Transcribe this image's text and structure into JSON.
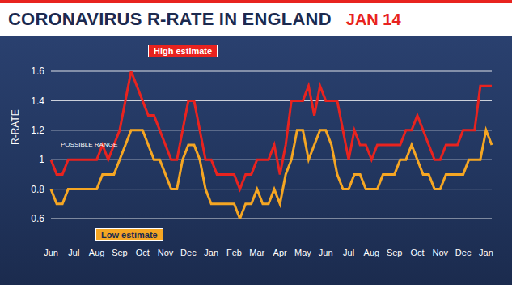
{
  "chart_data": {
    "type": "line",
    "title": "CORONAVIRUS R-RATE IN ENGLAND",
    "subtitle": "JAN 14",
    "y_label": "R-RATE",
    "annotations": [
      "POSSIBLE RANGE"
    ],
    "categories": [
      "Jun",
      null,
      null,
      null,
      "Jul",
      null,
      null,
      null,
      "Aug",
      null,
      null,
      null,
      "Sep",
      null,
      null,
      null,
      "Oct",
      null,
      null,
      null,
      "Nov",
      null,
      null,
      null,
      "Dec",
      null,
      null,
      null,
      "Jan",
      null,
      null,
      null,
      "Feb",
      null,
      null,
      null,
      "Mar",
      null,
      null,
      null,
      "Apr",
      null,
      null,
      null,
      "May",
      null,
      null,
      null,
      "Jun",
      null,
      null,
      null,
      "Jul",
      null,
      null,
      null,
      "Aug",
      null,
      null,
      null,
      "Sep",
      null,
      null,
      null,
      "Oct",
      null,
      null,
      null,
      "Nov",
      null,
      null,
      null,
      "Dec",
      null,
      null,
      null,
      "Jan",
      null
    ],
    "series": [
      {
        "name": "High estimate",
        "color": "#e8231f",
        "values": [
          1.0,
          0.9,
          0.9,
          1.0,
          1.0,
          1.0,
          1.0,
          1.0,
          1.0,
          1.1,
          1.0,
          1.1,
          1.2,
          1.4,
          1.6,
          1.5,
          1.4,
          1.3,
          1.3,
          1.2,
          1.1,
          1.0,
          1.0,
          1.2,
          1.4,
          1.4,
          1.2,
          1.0,
          1.0,
          0.9,
          0.9,
          0.9,
          0.9,
          0.8,
          0.9,
          0.9,
          1.0,
          1.0,
          1.0,
          1.1,
          0.9,
          1.1,
          1.4,
          1.4,
          1.4,
          1.5,
          1.3,
          1.5,
          1.4,
          1.4,
          1.4,
          1.2,
          1.0,
          1.2,
          1.1,
          1.1,
          1.0,
          1.1,
          1.1,
          1.1,
          1.1,
          1.1,
          1.2,
          1.2,
          1.3,
          1.2,
          1.1,
          1.0,
          1.0,
          1.1,
          1.1,
          1.1,
          1.2,
          1.2,
          1.2,
          1.5,
          1.5,
          1.5
        ]
      },
      {
        "name": "Low estimate",
        "color": "#f5a623",
        "values": [
          0.8,
          0.7,
          0.7,
          0.8,
          0.8,
          0.8,
          0.8,
          0.8,
          0.8,
          0.9,
          0.9,
          0.9,
          1.0,
          1.1,
          1.2,
          1.2,
          1.2,
          1.1,
          1.0,
          1.0,
          0.9,
          0.8,
          0.8,
          1.0,
          1.1,
          1.1,
          1.0,
          0.8,
          0.7,
          0.7,
          0.7,
          0.7,
          0.7,
          0.6,
          0.7,
          0.7,
          0.8,
          0.7,
          0.7,
          0.8,
          0.7,
          0.9,
          1.0,
          1.2,
          1.2,
          1.0,
          1.1,
          1.2,
          1.2,
          1.1,
          0.9,
          0.8,
          0.8,
          0.9,
          0.9,
          0.8,
          0.8,
          0.8,
          0.9,
          0.9,
          0.9,
          1.0,
          1.0,
          1.1,
          1.0,
          0.9,
          0.9,
          0.8,
          0.8,
          0.9,
          0.9,
          0.9,
          0.9,
          1.0,
          1.0,
          1.0,
          1.2,
          1.1
        ]
      }
    ],
    "ylim": [
      0.6,
      1.6
    ],
    "yticks": [
      0.6,
      0.8,
      1,
      1.2,
      1.4,
      1.6
    ],
    "grid": true
  }
}
